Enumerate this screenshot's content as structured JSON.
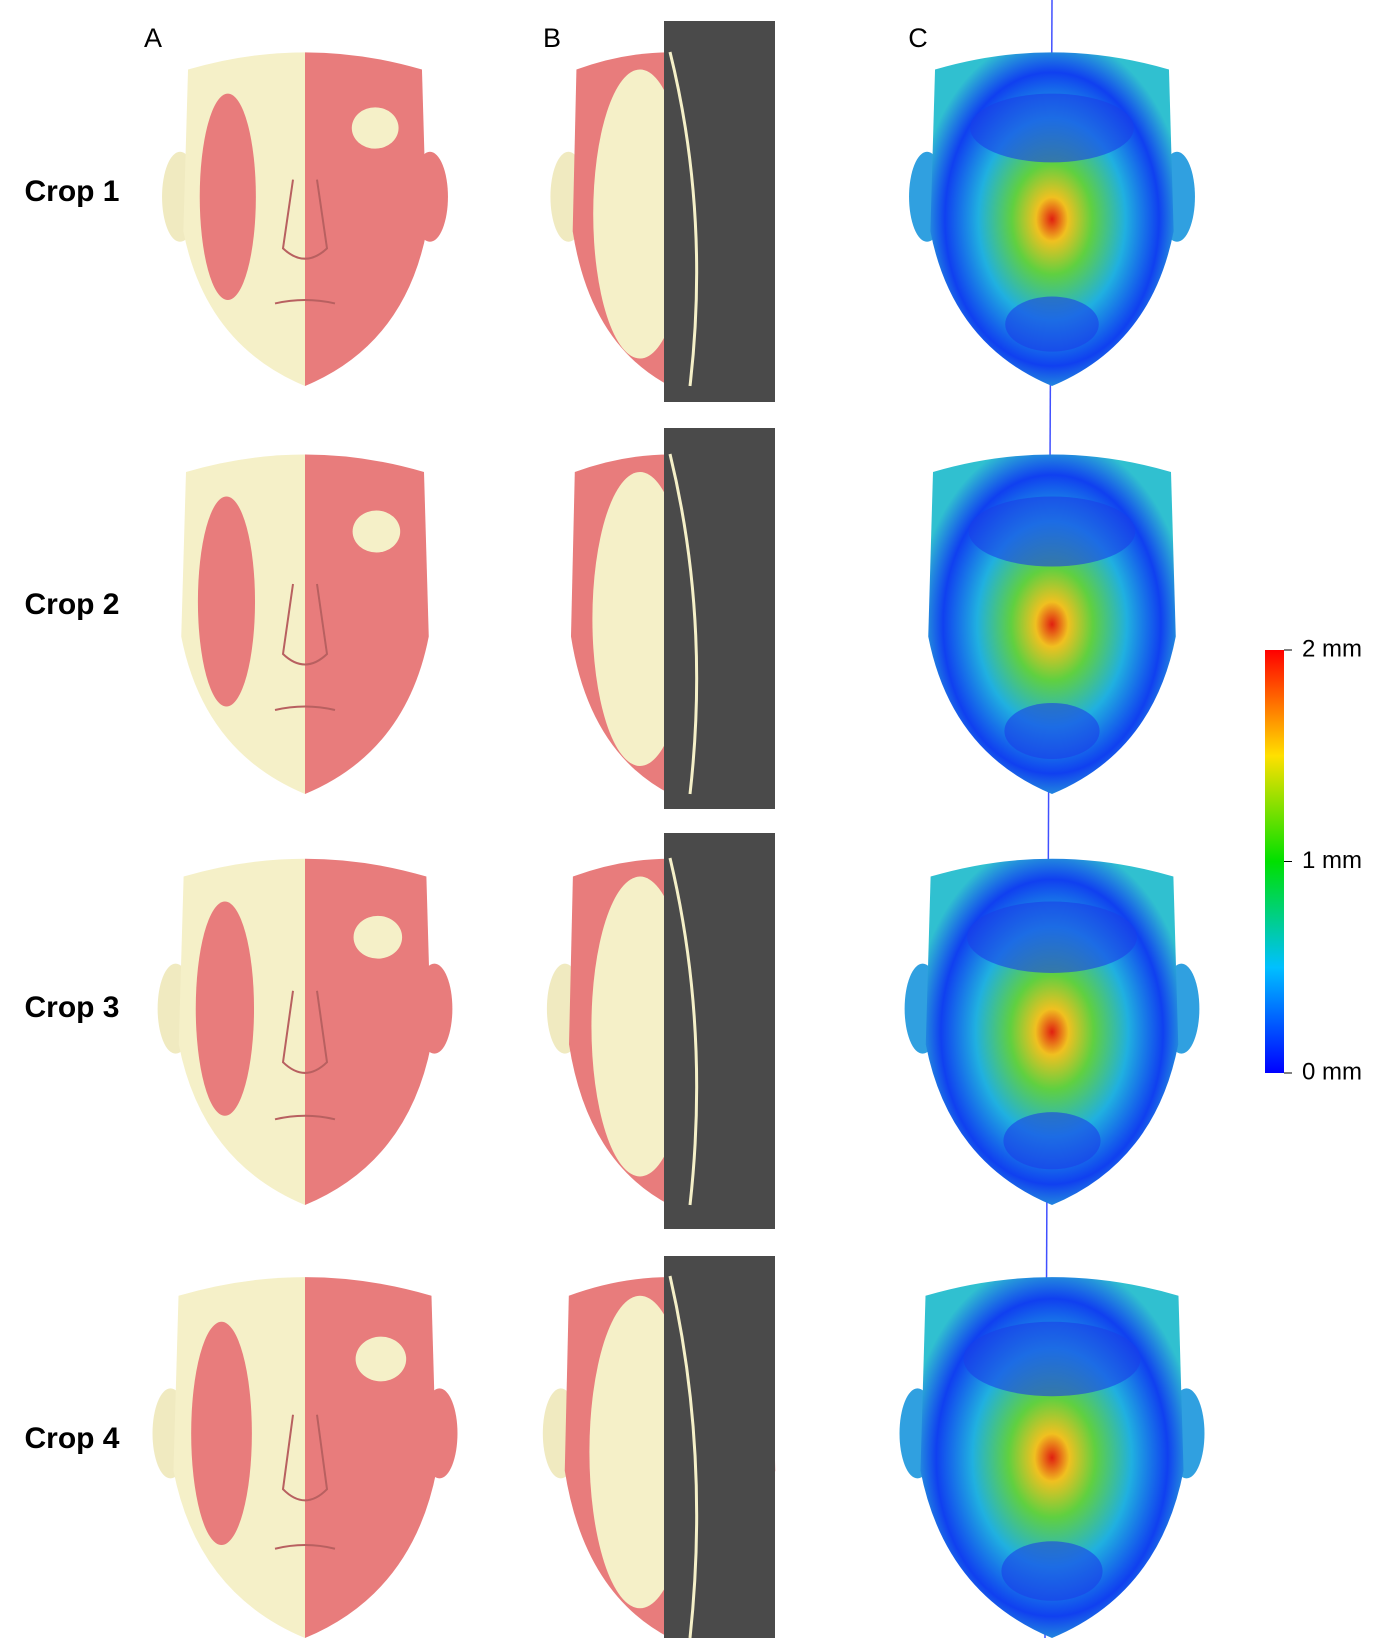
{
  "columns": [
    "A",
    "B",
    "C"
  ],
  "rows": [
    "Crop  1",
    "Crop 2",
    "Crop 3",
    "Crop 4"
  ],
  "colorbar": {
    "labels": [
      "2 mm",
      "1 mm",
      "0 mm"
    ]
  }
}
